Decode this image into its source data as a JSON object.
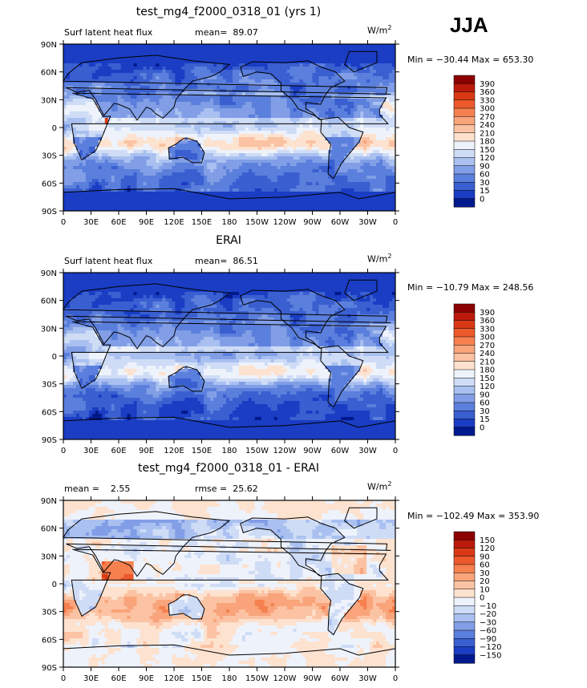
{
  "season": "JJA",
  "units_label": "W/m",
  "units_sup": "2",
  "chart_data": [
    {
      "type": "heatmap",
      "title": "test_mg4_f2000_0318_01 (yrs 1)",
      "field": "Surf latent heat flux",
      "mean_label": "mean=",
      "mean": "89.07",
      "stats": "Min = −30.44 Max = 653.30",
      "min": -30.44,
      "max": 653.3,
      "lat_ticks": [
        "90N",
        "60N",
        "30N",
        "0",
        "30S",
        "60S",
        "90S"
      ],
      "lon_ticks": [
        "0",
        "30E",
        "60E",
        "90E",
        "120E",
        "150E",
        "180",
        "150W",
        "120W",
        "90W",
        "60W",
        "30W",
        "0"
      ],
      "colorbar_labels": [
        "390",
        "360",
        "330",
        "300",
        "270",
        "240",
        "210",
        "180",
        "150",
        "120",
        "90",
        "60",
        "30",
        "15",
        "0"
      ],
      "colorbar_colors": [
        "#8b0000",
        "#bb1a0a",
        "#d93a15",
        "#ec5a2b",
        "#f6804f",
        "#f9a47b",
        "#fbc3a3",
        "#fde2cf",
        "#eef2fb",
        "#cfdcf6",
        "#a9c0f0",
        "#819ee6",
        "#5b7fdc",
        "#3a5fd0",
        "#1a3dc4",
        "#00198c"
      ]
    },
    {
      "type": "heatmap",
      "title": "ERAI",
      "field": "Surf latent heat flux",
      "mean_label": "mean=",
      "mean": "86.51",
      "stats": "Min = −10.79 Max = 248.56",
      "min": -10.79,
      "max": 248.56,
      "lat_ticks": [
        "90N",
        "60N",
        "30N",
        "0",
        "30S",
        "60S",
        "90S"
      ],
      "lon_ticks": [
        "0",
        "30E",
        "60E",
        "90E",
        "120E",
        "150E",
        "180",
        "150W",
        "120W",
        "90W",
        "60W",
        "30W",
        "0"
      ],
      "colorbar_labels": [
        "390",
        "360",
        "330",
        "300",
        "270",
        "240",
        "210",
        "180",
        "150",
        "120",
        "90",
        "60",
        "30",
        "15",
        "0"
      ],
      "colorbar_colors": [
        "#8b0000",
        "#bb1a0a",
        "#d93a15",
        "#ec5a2b",
        "#f6804f",
        "#f9a47b",
        "#fbc3a3",
        "#fde2cf",
        "#eef2fb",
        "#cfdcf6",
        "#a9c0f0",
        "#819ee6",
        "#5b7fdc",
        "#3a5fd0",
        "#1a3dc4",
        "#00198c"
      ]
    },
    {
      "type": "heatmap",
      "title": "test_mg4_f2000_0318_01 - ERAI",
      "mean_label": "mean =",
      "mean": "2.55",
      "rmse_label": "rmse =",
      "rmse": "25.62",
      "stats": "Min = −102.49 Max = 353.90",
      "min": -102.49,
      "max": 353.9,
      "lat_ticks": [
        "90N",
        "60N",
        "30N",
        "0",
        "30S",
        "60S",
        "90S"
      ],
      "lon_ticks": [
        "0",
        "30E",
        "60E",
        "90E",
        "120E",
        "150E",
        "180",
        "150W",
        "120W",
        "90W",
        "60W",
        "30W",
        "0"
      ],
      "colorbar_labels": [
        "150",
        "120",
        "90",
        "60",
        "30",
        "20",
        "10",
        "0",
        "−10",
        "−20",
        "−30",
        "−60",
        "−90",
        "−120",
        "−150"
      ],
      "colorbar_colors": [
        "#8b0000",
        "#bb1a0a",
        "#d93a15",
        "#ec5a2b",
        "#f6804f",
        "#f9a47b",
        "#fbc3a3",
        "#fde2cf",
        "#eef2fb",
        "#cfdcf6",
        "#a9c0f0",
        "#819ee6",
        "#5b7fdc",
        "#3a5fd0",
        "#1a3dc4",
        "#00198c"
      ]
    }
  ]
}
